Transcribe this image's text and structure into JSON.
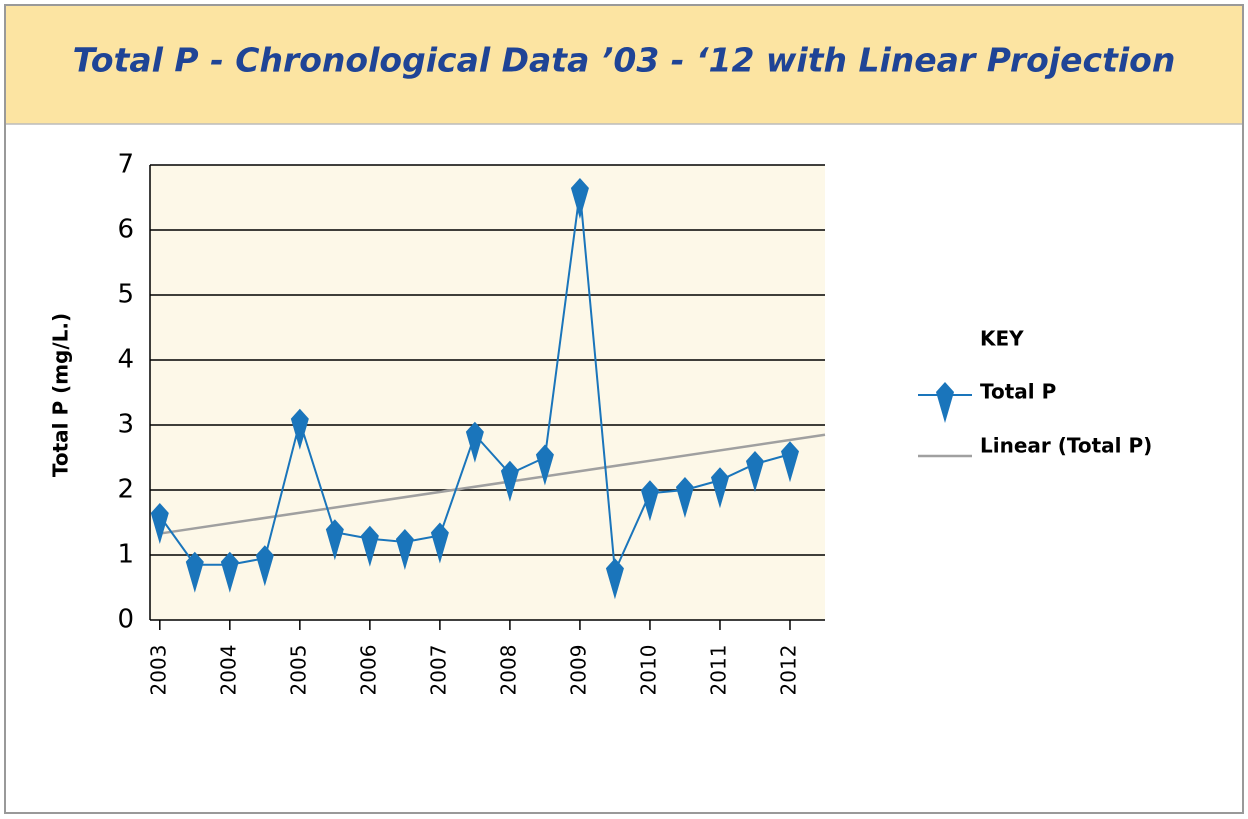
{
  "chart_data": {
    "type": "line",
    "title": "Total P - Chronological Data ’03 - ‘12 with Linear Projection",
    "y_label": "Total P (mg/L.)",
    "legend_title": "KEY",
    "x": [
      2003,
      2003.5,
      2004,
      2004.5,
      2005,
      2005.5,
      2006,
      2006.5,
      2007,
      2007.5,
      2008,
      2008.5,
      2009,
      2009.5,
      2010,
      2010.5,
      2011,
      2011.5,
      2012
    ],
    "series": [
      {
        "name": "Total P",
        "color": "#1a75bb",
        "values": [
          1.6,
          0.85,
          0.85,
          0.95,
          3.05,
          1.35,
          1.25,
          1.2,
          1.3,
          2.85,
          2.25,
          2.5,
          6.6,
          0.75,
          1.95,
          2.0,
          2.15,
          2.4,
          2.55
        ]
      },
      {
        "name": "Linear (Total P)",
        "color": "#a0a0a0",
        "x": [
          2003,
          2012.5
        ],
        "values": [
          1.33,
          2.85
        ]
      }
    ],
    "xlim": [
      2002.86,
      2012.5
    ],
    "ylim": [
      0,
      7
    ],
    "xticks": [
      2003,
      2004,
      2005,
      2006,
      2007,
      2008,
      2009,
      2010,
      2011,
      2012
    ],
    "yticks": [
      0,
      1,
      2,
      3,
      4,
      5,
      6,
      7
    ],
    "grid": true
  }
}
